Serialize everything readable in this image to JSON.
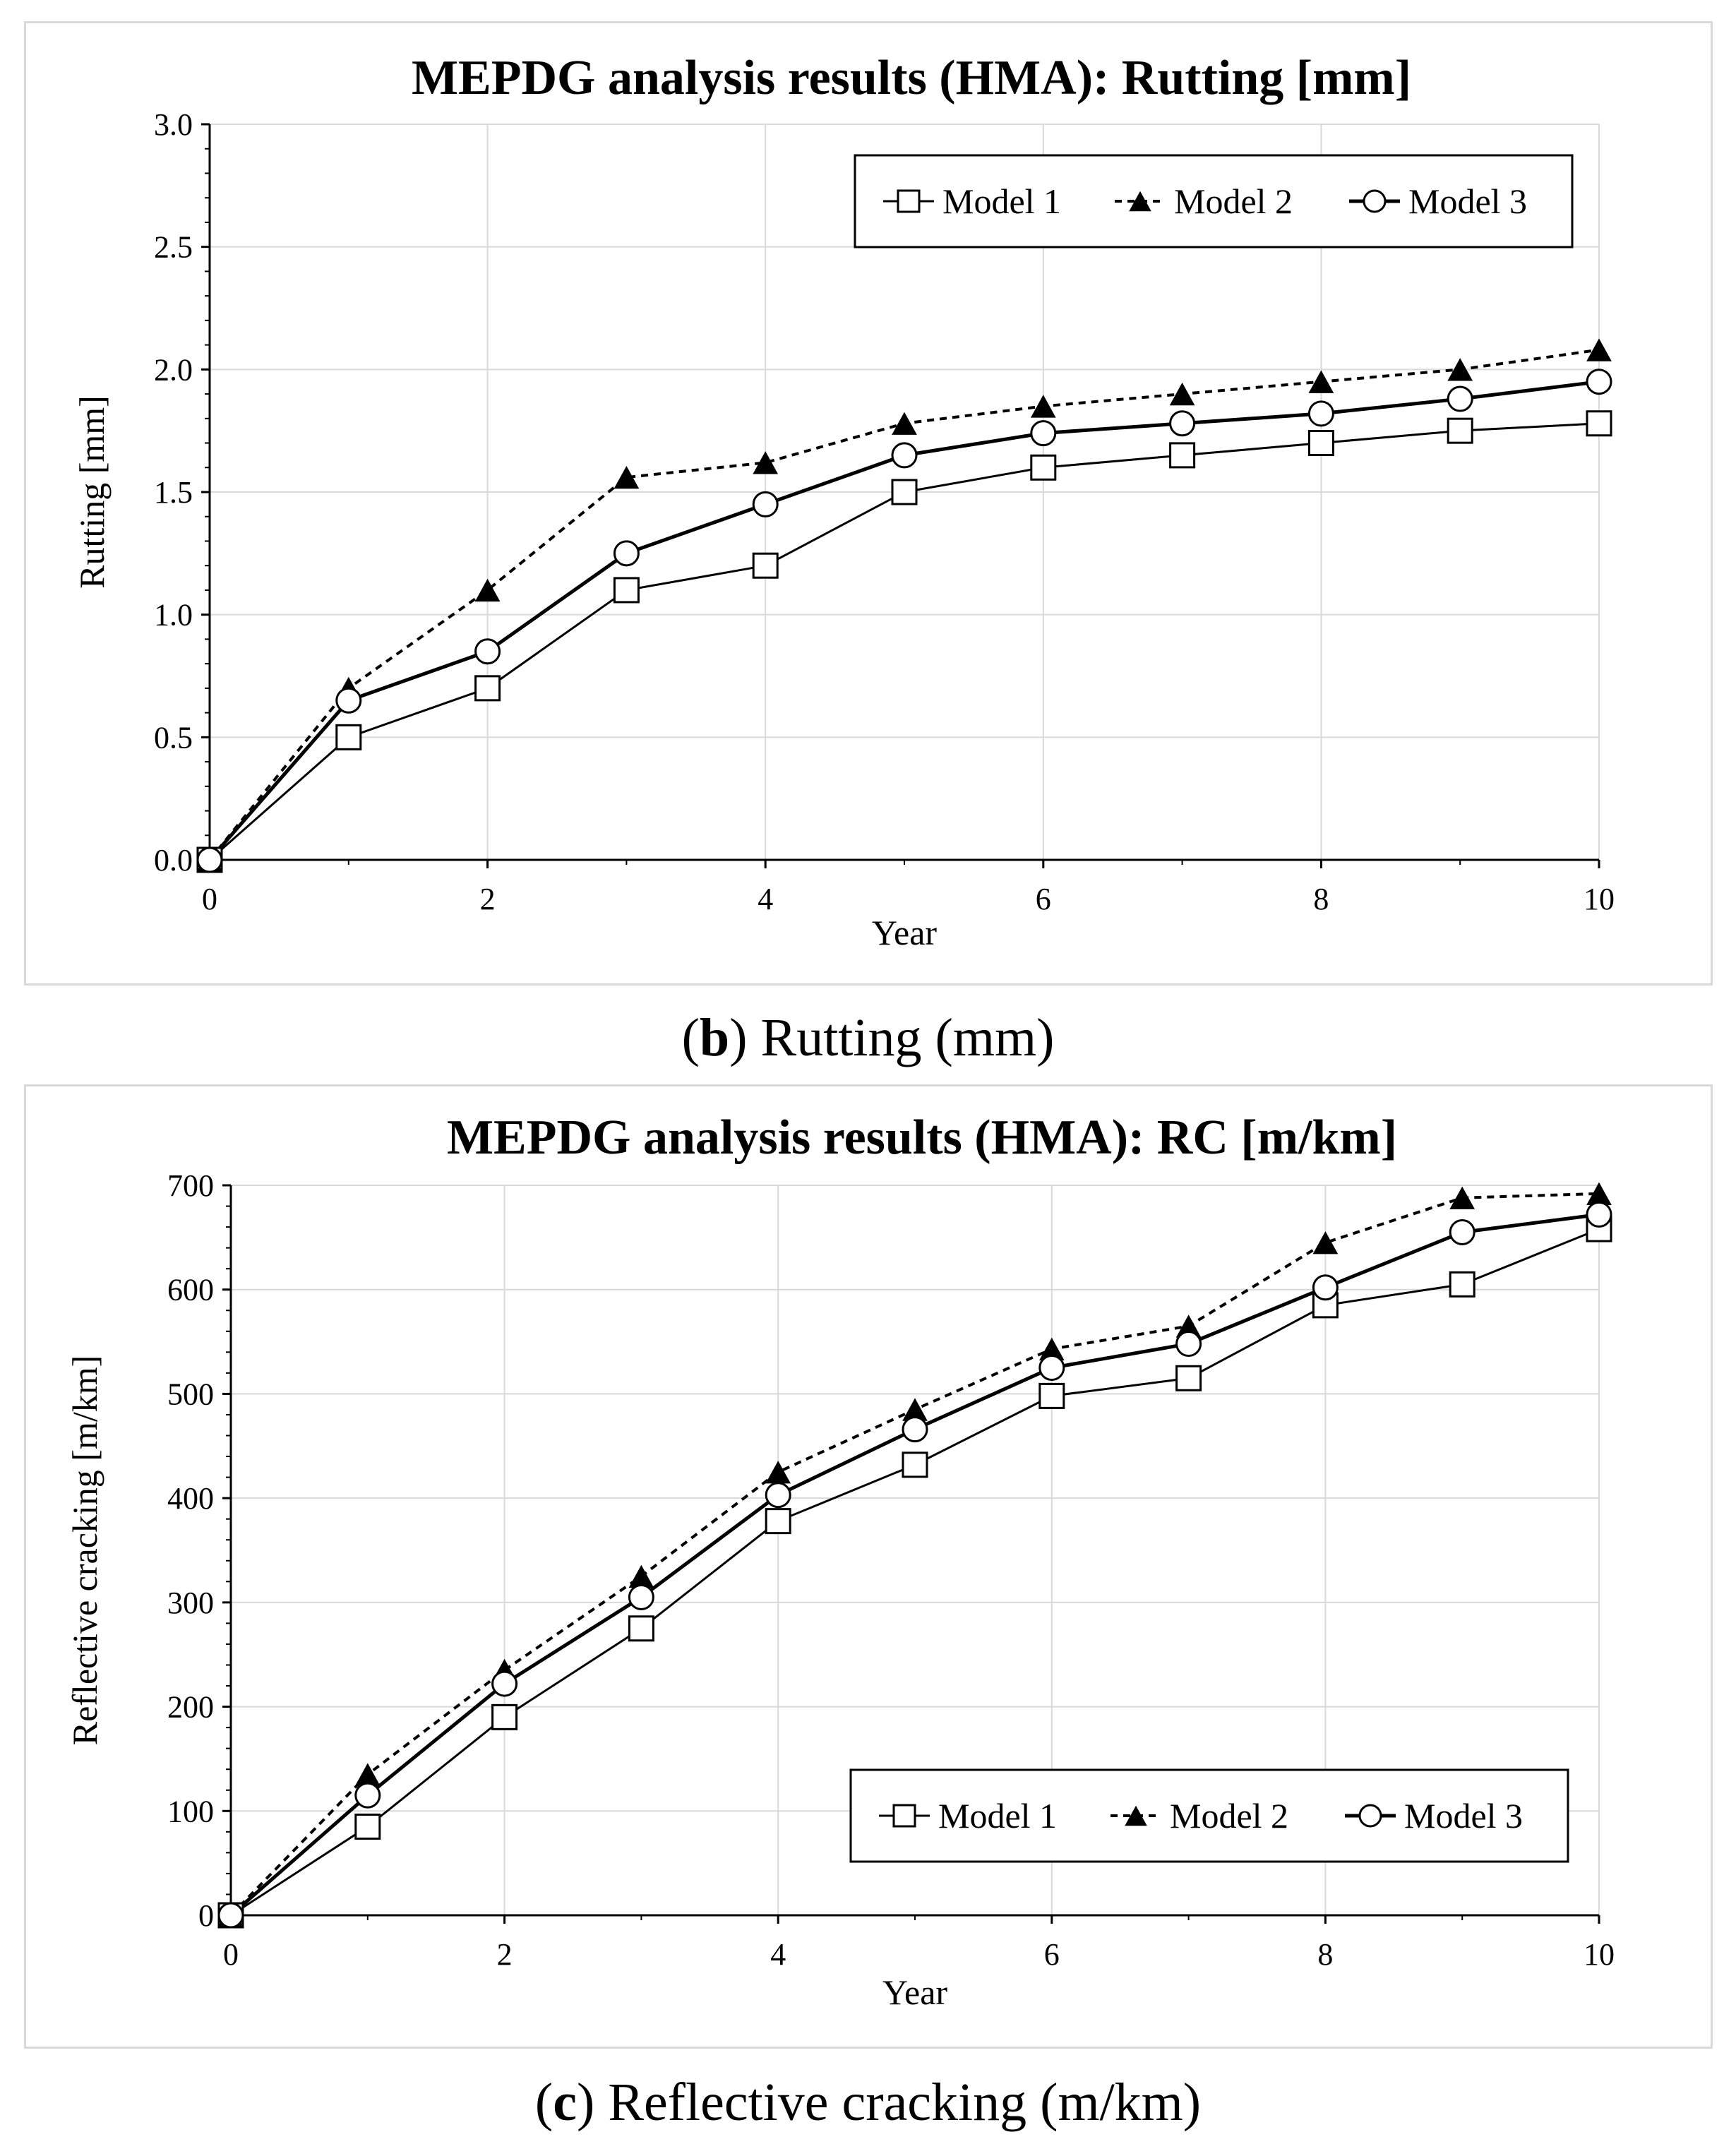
{
  "captions": [
    {
      "letter": "b",
      "text": ") Rutting (mm)"
    },
    {
      "letter": "c",
      "text": ") Reflective cracking (m/km)"
    }
  ],
  "colors": {
    "line": "#000000",
    "grid": "#d9d9d9",
    "frame": "#d9d9d9",
    "background": "#ffffff"
  },
  "chart_data": [
    {
      "type": "line",
      "title": "MEPDG analysis results (HMA): Rutting [mm]",
      "xlabel": "Year",
      "ylabel": "Rutting [mm]",
      "xlim": [
        0,
        10
      ],
      "ylim": [
        0,
        3.0
      ],
      "xticks": [
        0,
        2,
        4,
        6,
        8,
        10
      ],
      "xtick_labels": [
        "0",
        "2",
        "4",
        "6",
        "8",
        "10"
      ],
      "yticks": [
        0,
        0.5,
        1.0,
        1.5,
        2.0,
        2.5,
        3.0
      ],
      "ytick_labels": [
        "0.0",
        "0.5",
        "1.0",
        "1.5",
        "2.0",
        "2.5",
        "3.0"
      ],
      "grid": true,
      "legend_position": "top-right",
      "x": [
        0,
        1,
        2,
        3,
        4,
        5,
        6,
        7,
        8,
        9,
        10
      ],
      "series": [
        {
          "name": "Model 1",
          "marker": "square",
          "line": "solid-thin",
          "values": [
            0,
            0.5,
            0.7,
            1.1,
            1.2,
            1.5,
            1.6,
            1.65,
            1.7,
            1.75,
            1.78
          ]
        },
        {
          "name": "Model 2",
          "marker": "triangle",
          "line": "dashed",
          "values": [
            0,
            0.7,
            1.1,
            1.56,
            1.62,
            1.78,
            1.85,
            1.9,
            1.95,
            2.0,
            2.08
          ]
        },
        {
          "name": "Model 3",
          "marker": "circle",
          "line": "solid-thick",
          "values": [
            0,
            0.65,
            0.85,
            1.25,
            1.45,
            1.65,
            1.74,
            1.78,
            1.82,
            1.88,
            1.95
          ]
        }
      ]
    },
    {
      "type": "line",
      "title": "MEPDG analysis results (HMA): RC [m/km]",
      "xlabel": "Year",
      "ylabel": "Reflective cracking [m/km]",
      "xlim": [
        0,
        10
      ],
      "ylim": [
        0,
        700
      ],
      "xticks": [
        0,
        2,
        4,
        6,
        8,
        10
      ],
      "xtick_labels": [
        "0",
        "2",
        "4",
        "6",
        "8",
        "10"
      ],
      "yticks": [
        0,
        100,
        200,
        300,
        400,
        500,
        600,
        700
      ],
      "ytick_labels": [
        "0",
        "100",
        "200",
        "300",
        "400",
        "500",
        "600",
        "700"
      ],
      "grid": true,
      "legend_position": "bottom-right",
      "x": [
        0,
        1,
        2,
        3,
        4,
        5,
        6,
        7,
        8,
        9,
        10
      ],
      "series": [
        {
          "name": "Model 1",
          "marker": "square",
          "line": "solid-thin",
          "values": [
            0,
            85,
            190,
            275,
            378,
            432,
            498,
            515,
            585,
            605,
            658
          ]
        },
        {
          "name": "Model 2",
          "marker": "triangle",
          "line": "dashed",
          "values": [
            0,
            135,
            235,
            325,
            425,
            485,
            543,
            565,
            645,
            688,
            692
          ]
        },
        {
          "name": "Model 3",
          "marker": "circle",
          "line": "solid-thick",
          "values": [
            0,
            115,
            222,
            305,
            403,
            466,
            525,
            548,
            602,
            655,
            672
          ]
        }
      ]
    }
  ]
}
